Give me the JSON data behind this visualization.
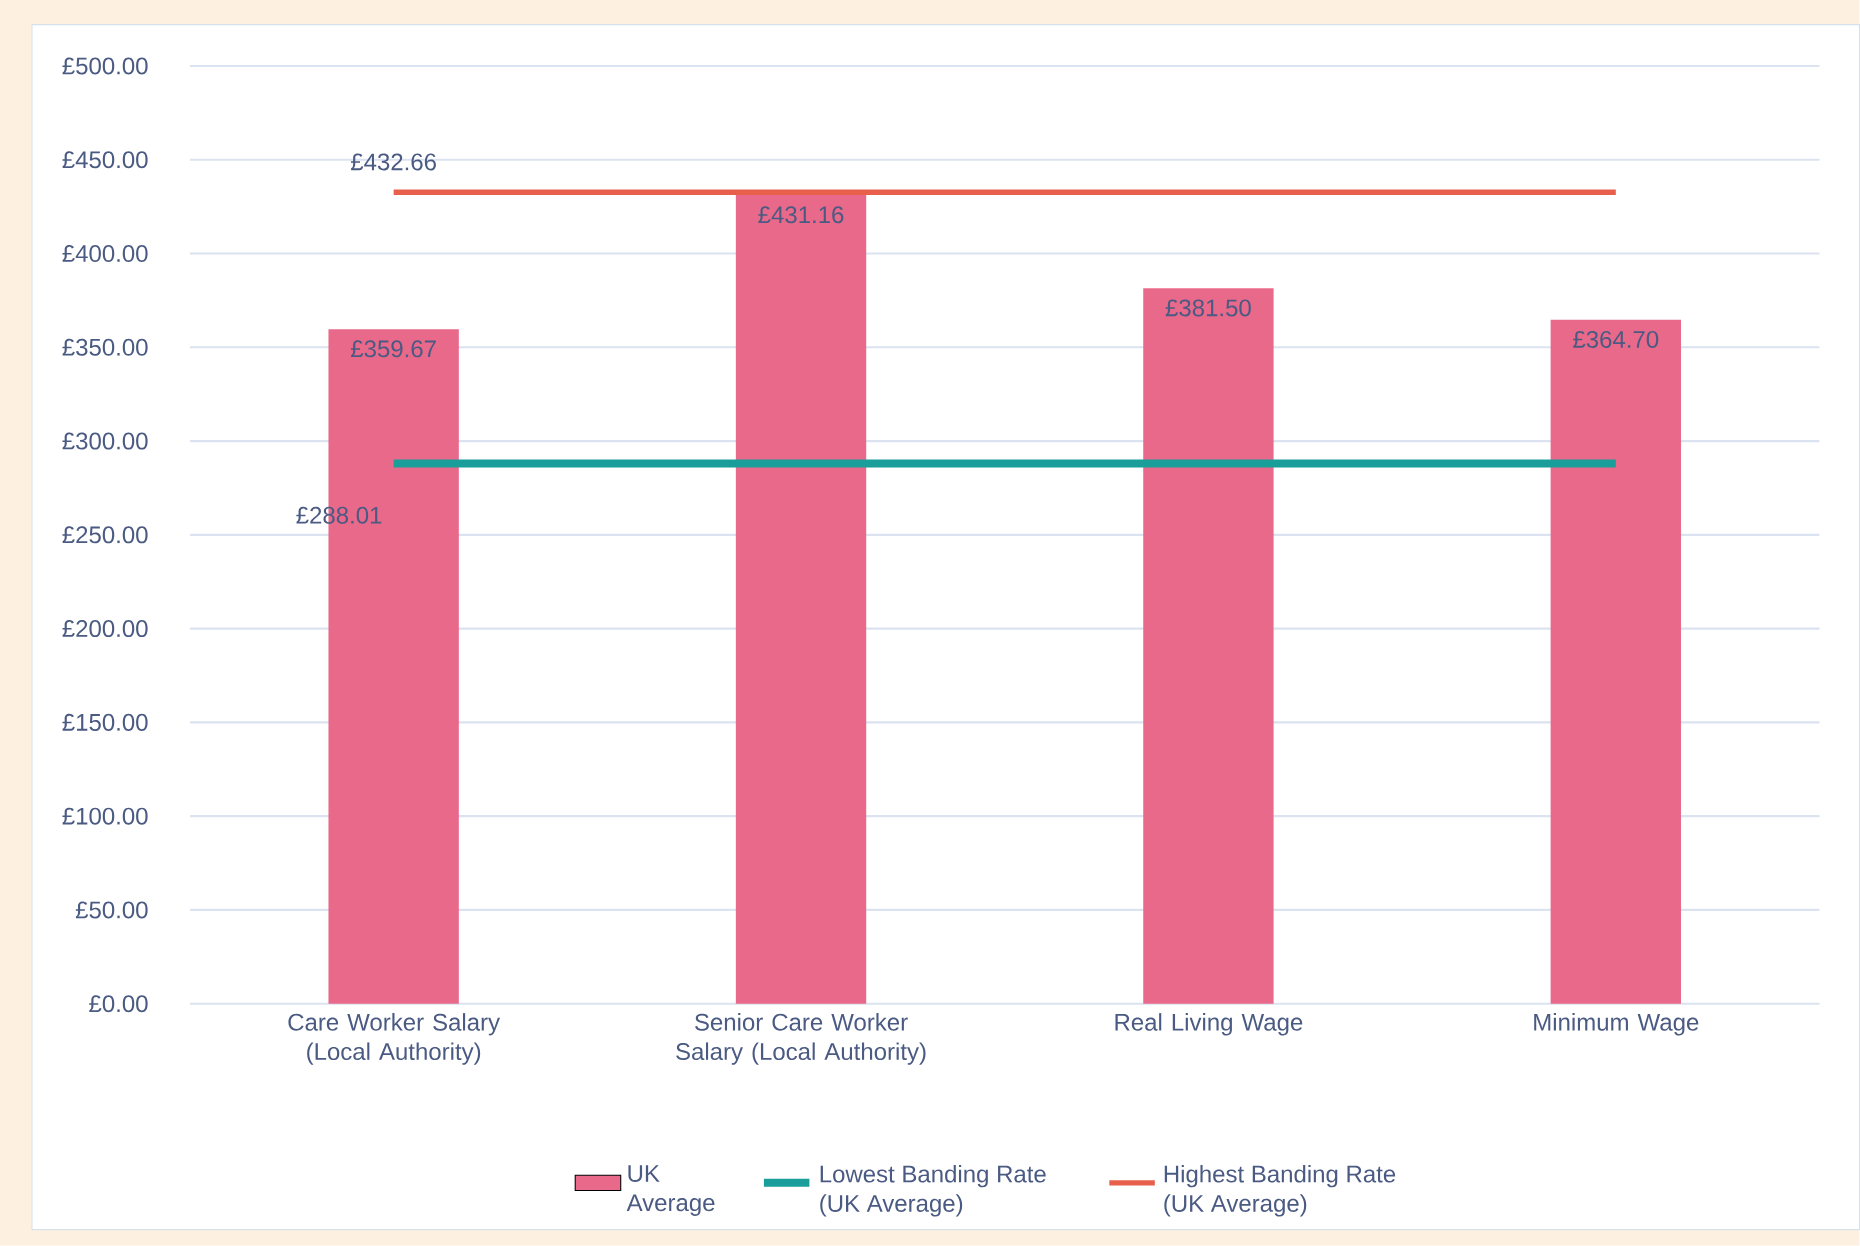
{
  "chart_data": {
    "type": "bar",
    "categories": [
      "Care Worker Salary (Local Authority)",
      "Senior Care Worker Salary (Local Authority)",
      "Real Living Wage",
      "Minimum Wage"
    ],
    "series": [
      {
        "name": "UK Average",
        "color": "#e8698a",
        "values": [
          359.67,
          431.16,
          381.5,
          364.7
        ],
        "value_labels": [
          "£359.67",
          "£431.16",
          "£381.50",
          "£364.70"
        ]
      },
      {
        "name": "Lowest Banding Rate (UK Average)",
        "type": "line",
        "color": "#1a9e9a",
        "values": [
          288.01,
          288.01,
          288.01,
          288.01
        ],
        "value_labels": [
          "£288.01",
          null,
          null,
          null
        ]
      },
      {
        "name": "Highest Banding Rate (UK Average)",
        "type": "line",
        "color": "#e8604c",
        "values": [
          432.66,
          432.66,
          432.66,
          432.66
        ],
        "value_labels": [
          "£432.66",
          null,
          null,
          null
        ]
      }
    ],
    "ylim": [
      0,
      500
    ],
    "yticks": [
      {
        "value": 0,
        "label": "£0.00"
      },
      {
        "value": 50,
        "label": "£50.00"
      },
      {
        "value": 100,
        "label": "£100.00"
      },
      {
        "value": 150,
        "label": "£150.00"
      },
      {
        "value": 200,
        "label": "£200.00"
      },
      {
        "value": 250,
        "label": "£250.00"
      },
      {
        "value": 300,
        "label": "£300.00"
      },
      {
        "value": 350,
        "label": "£350.00"
      },
      {
        "value": 400,
        "label": "£400.00"
      },
      {
        "value": 450,
        "label": "£450.00"
      },
      {
        "value": 500,
        "label": "£500.00"
      }
    ],
    "grid": "y",
    "legend": "bottom"
  }
}
